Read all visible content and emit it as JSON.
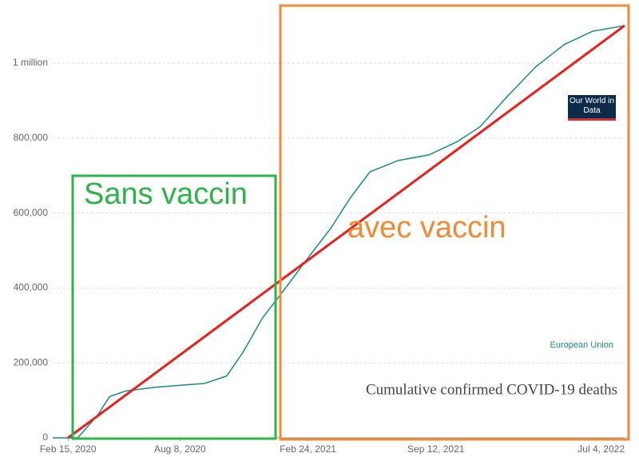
{
  "chart_data": {
    "type": "line",
    "title": "Cumulative confirmed COVID-19 deaths",
    "logo": "Our World in Data",
    "annotations": [
      "Sans vaccin",
      "avec vaccin"
    ],
    "xlim": [
      "2020-01-22",
      "2022-07-04"
    ],
    "xticks": [
      {
        "value": "2020-02-15",
        "label": "Feb 15, 2020"
      },
      {
        "value": "2020-08-08",
        "label": "Aug 8, 2020"
      },
      {
        "value": "2021-02-24",
        "label": "Feb 24, 2021"
      },
      {
        "value": "2021-09-12",
        "label": "Sep 12, 2021"
      },
      {
        "value": "2022-07-04",
        "label": "Jul 4, 2022"
      }
    ],
    "ylim": [
      0,
      1130000
    ],
    "yticks": [
      0,
      {
        "value": 200000,
        "label": "200,000"
      },
      {
        "value": 400000,
        "label": "400,000"
      },
      {
        "value": 600000,
        "label": "600,000"
      },
      {
        "value": 800000,
        "label": "800,000"
      },
      {
        "value": 1000000,
        "label": "1 million"
      }
    ],
    "grid": true,
    "series": [
      {
        "name": "European Union",
        "color": "#1a8a84",
        "x": [
          "2020-01-22",
          "2020-03-01",
          "2020-04-01",
          "2020-04-20",
          "2020-05-15",
          "2020-07-01",
          "2020-09-15",
          "2020-10-20",
          "2020-11-15",
          "2020-12-15",
          "2021-01-20",
          "2021-02-24",
          "2021-04-01",
          "2021-05-01",
          "2021-06-01",
          "2021-07-15",
          "2021-09-01",
          "2021-10-15",
          "2021-11-20",
          "2022-01-01",
          "2022-02-15",
          "2022-04-01",
          "2022-05-15",
          "2022-07-04"
        ],
        "values": [
          0,
          0,
          60000,
          110000,
          125000,
          135000,
          145000,
          165000,
          230000,
          320000,
          400000,
          480000,
          560000,
          640000,
          710000,
          740000,
          755000,
          790000,
          830000,
          910000,
          990000,
          1050000,
          1085000,
          1100000
        ]
      }
    ],
    "trend_line": {
      "color": "#e8201c",
      "x": [
        "2020-02-15",
        "2022-07-04"
      ],
      "values": [
        0,
        1100000
      ]
    }
  }
}
